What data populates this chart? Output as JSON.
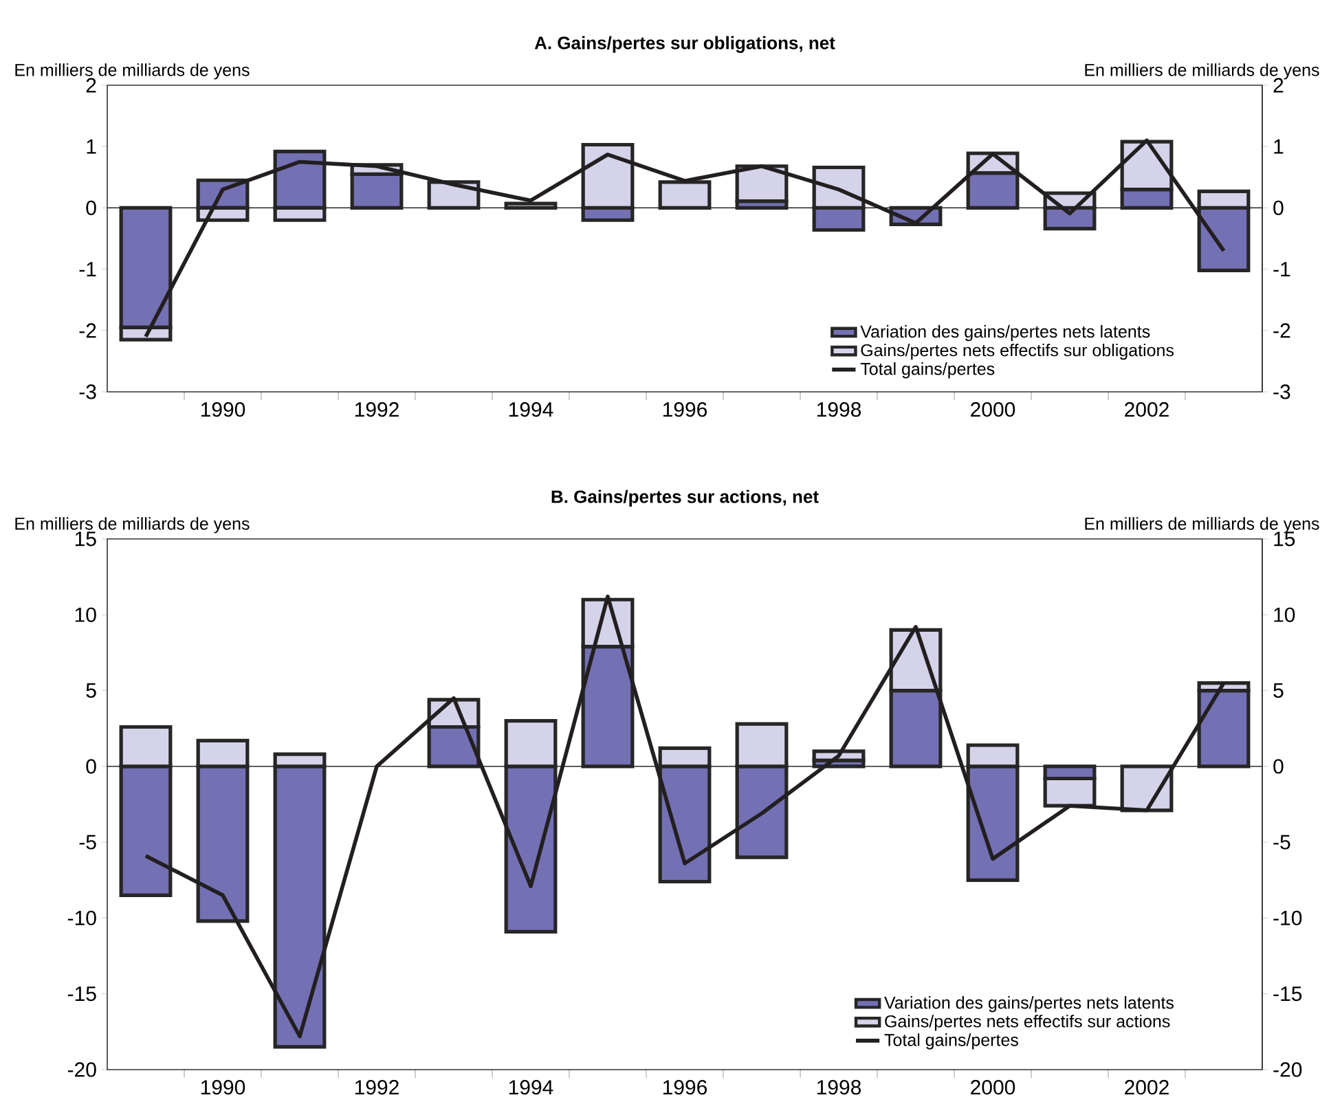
{
  "chart_data": [
    {
      "type": "bar",
      "stacked": true,
      "title": "A.  Gains/pertes sur obligations, net",
      "annotations": [
        "En milliers de milliards de yens",
        "En milliers de milliards de yens"
      ],
      "categories": [
        null,
        "1990",
        null,
        "1992",
        null,
        "1994",
        null,
        "1996",
        null,
        "1998",
        null,
        "2000",
        null,
        "2002",
        null
      ],
      "series": [
        {
          "name": "Variation des gains/pertes nets latents",
          "color": "#7470b4",
          "values": [
            -1.95,
            0.45,
            0.92,
            0.55,
            null,
            null,
            -0.2,
            null,
            0.11,
            -0.36,
            -0.27,
            0.57,
            -0.34,
            0.3,
            -1.02
          ]
        },
        {
          "name": "Gains/pertes nets effectifs sur obligations",
          "color": "#d4d3ea",
          "values": [
            -0.2,
            -0.2,
            -0.2,
            0.15,
            0.42,
            0.07,
            1.03,
            0.42,
            0.57,
            0.66,
            null,
            0.32,
            0.24,
            0.78,
            0.27
          ]
        },
        {
          "name": "Total gains/pertes",
          "type": "line",
          "color": "#231f20",
          "values": [
            -2.1,
            0.3,
            0.75,
            0.68,
            0.38,
            0.12,
            0.87,
            0.44,
            0.68,
            0.3,
            -0.25,
            0.88,
            -0.09,
            1.1,
            -0.7
          ]
        }
      ],
      "ylim": [
        -3,
        2
      ],
      "yticks": [
        -3,
        -2,
        -1,
        0,
        1,
        2
      ],
      "y2lim": [
        -3,
        2
      ],
      "y2ticks": [
        -3,
        -2,
        -1,
        0,
        1,
        2
      ],
      "ref_lines": [
        {
          "axis": "y",
          "value": 0
        }
      ],
      "legend": "bottom right"
    },
    {
      "type": "bar",
      "stacked": true,
      "title": "B.  Gains/pertes sur actions, net",
      "annotations": [
        "En milliers de milliards de yens",
        "En milliers de milliards de yens"
      ],
      "categories": [
        null,
        "1990",
        null,
        "1992",
        null,
        "1994",
        null,
        "1996",
        null,
        "1998",
        null,
        "2000",
        null,
        "2002",
        null
      ],
      "series": [
        {
          "name": "Variation des gains/pertes nets latents",
          "color": "#7470b4",
          "values": [
            -8.5,
            -10.2,
            -18.5,
            null,
            2.6,
            -10.9,
            7.9,
            -7.6,
            -6.0,
            0.4,
            5.0,
            -7.5,
            -0.8,
            null,
            5.0
          ]
        },
        {
          "name": "Gains/pertes nets effectifs sur actions",
          "color": "#d4d3ea",
          "values": [
            2.6,
            1.7,
            0.8,
            null,
            1.8,
            3.0,
            3.1,
            1.2,
            2.8,
            0.6,
            4.0,
            1.4,
            -1.8,
            -2.9,
            0.5
          ]
        },
        {
          "name": "Total gains/pertes",
          "type": "line",
          "color": "#231f20",
          "values": [
            -5.9,
            -8.5,
            -17.8,
            0,
            4.5,
            -7.9,
            11.2,
            -6.4,
            -3.1,
            0.7,
            9.2,
            -6.1,
            -2.6,
            -2.9,
            5.5
          ]
        }
      ],
      "ylim": [
        -20,
        15
      ],
      "yticks": [
        -20,
        -15,
        -10,
        -5,
        0,
        5,
        10,
        15
      ],
      "y2lim": [
        -20,
        15
      ],
      "y2ticks": [
        -20,
        -15,
        -10,
        -5,
        0,
        5,
        10,
        15
      ],
      "ref_lines": [
        {
          "axis": "y",
          "value": 0
        }
      ],
      "legend": "bottom right"
    }
  ]
}
